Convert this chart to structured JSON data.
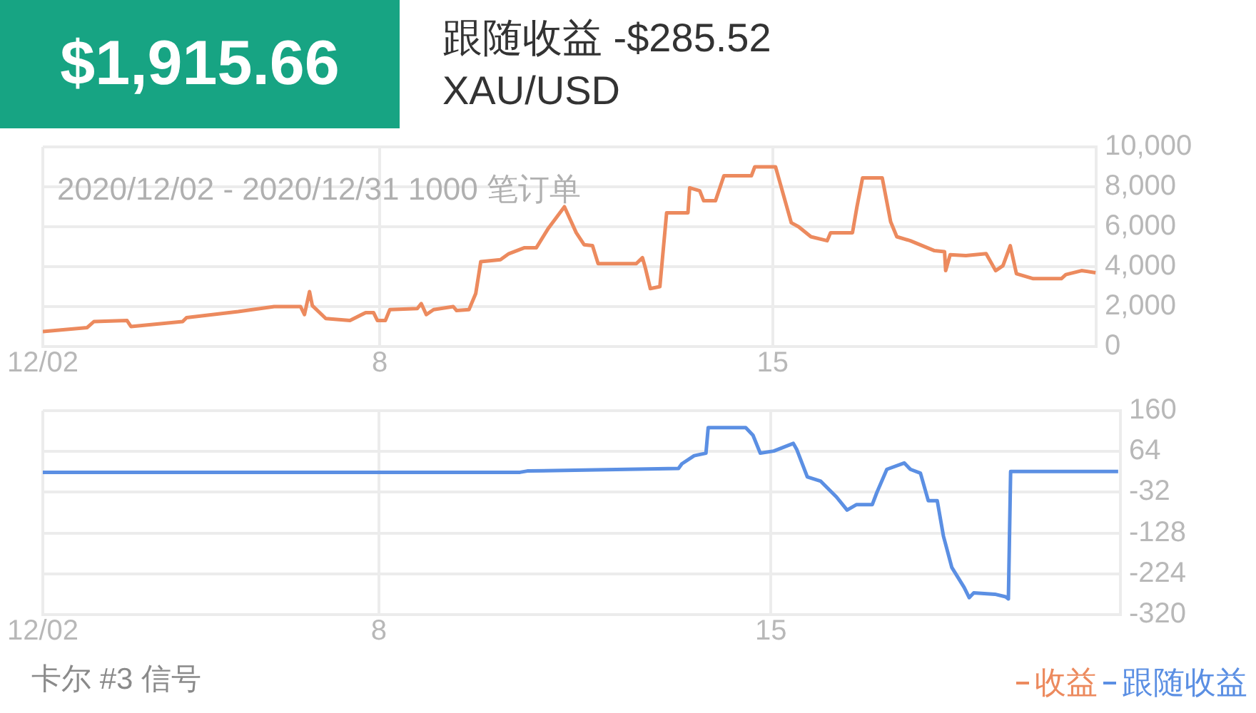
{
  "chart_data": [
    {
      "type": "line",
      "title": "$1,915.66",
      "subtitle": "跟随收益 -$285.52",
      "annotations": [
        "XAU/USD",
        "2020/12/02 - 2020/12/31 1000 笔订单"
      ],
      "xlim": [
        2,
        20.76
      ],
      "xticks": [
        {
          "value": 2,
          "label": "12/02"
        },
        {
          "value": 8,
          "label": "8"
        },
        {
          "value": 15,
          "label": "15"
        }
      ],
      "ylim": [
        0,
        10000
      ],
      "yticks": [
        0,
        {
          "value": 2000,
          "label": "2,000"
        },
        {
          "value": 4000,
          "label": "4,000"
        },
        {
          "value": 6000,
          "label": "6,000"
        },
        {
          "value": 8000,
          "label": "8,000"
        },
        {
          "value": 10000,
          "label": "10,000"
        }
      ],
      "grid": true,
      "legend": "bottom right",
      "marker": "none",
      "series": [
        {
          "name": "收益",
          "color": "#ec8a5e",
          "x": [
            2,
            2.79,
            2.91,
            3.5,
            3.57,
            4.49,
            4.56,
            5.48,
            6.12,
            6.59,
            6.66,
            6.75,
            6.8,
            7.04,
            7.47,
            7.75,
            7.89,
            7.96,
            8.1,
            8.18,
            8.67,
            8.74,
            8.83,
            8.96,
            9.31,
            9.37,
            9.59,
            9.71,
            9.8,
            10.15,
            10.3,
            10.58,
            10.79,
            11.01,
            11.29,
            11.5,
            11.64,
            11.79,
            11.89,
            12.57,
            12.68,
            12.73,
            12.82,
            12.99,
            13.11,
            13.49,
            13.52,
            13.7,
            13.77,
            13.98,
            14.13,
            14.62,
            14.68,
            15.05,
            15.19,
            15.33,
            15.46,
            15.68,
            15.97,
            16.03,
            16.42,
            16.5,
            16.6,
            16.95,
            17.1,
            17.21,
            17.45,
            17.88,
            18.06,
            18.08,
            18.16,
            18.44,
            18.8,
            18.97,
            19.1,
            19.23,
            19.34,
            19.64,
            20.14,
            20.22,
            20.5,
            20.75
          ],
          "values": [
            750,
            950,
            1250,
            1300,
            1000,
            1250,
            1450,
            1750,
            2000,
            2000,
            1600,
            2750,
            2050,
            1400,
            1300,
            1700,
            1700,
            1300,
            1300,
            1850,
            1900,
            2150,
            1600,
            1850,
            2000,
            1800,
            1850,
            2650,
            4250,
            4350,
            4650,
            4950,
            4950,
            5950,
            7000,
            5700,
            5100,
            5050,
            4150,
            4150,
            4450,
            3950,
            2900,
            3000,
            6700,
            6700,
            7950,
            7800,
            7300,
            7300,
            8550,
            8550,
            9000,
            9000,
            7600,
            6200,
            6000,
            5500,
            5300,
            5700,
            5700,
            7000,
            8450,
            8450,
            6250,
            5500,
            5300,
            4800,
            4750,
            3800,
            4600,
            4550,
            4650,
            3800,
            4050,
            5050,
            3650,
            3400,
            3400,
            3600,
            3800,
            3700
          ]
        }
      ]
    },
    {
      "type": "line",
      "annotations": [
        "卡尔 #3 信号"
      ],
      "xlim": [
        2,
        21.24
      ],
      "xticks": [
        {
          "value": 2,
          "label": "12/02"
        },
        {
          "value": 8,
          "label": "8"
        },
        {
          "value": 15,
          "label": "15"
        }
      ],
      "ylim": [
        -320,
        160
      ],
      "yticks": [
        160,
        64,
        -32,
        -128,
        -224,
        -320
      ],
      "grid": true,
      "legend": "bottom right",
      "marker": "none",
      "series": [
        {
          "name": "跟随收益",
          "color": "#5b8fe3",
          "x": [
            2,
            10.52,
            10.65,
            13.35,
            13.41,
            13.63,
            13.84,
            13.88,
            14.55,
            14.68,
            14.81,
            15.05,
            15.4,
            15.46,
            15.65,
            15.89,
            16.17,
            16.36,
            16.53,
            16.81,
            16.89,
            17.07,
            17.38,
            17.49,
            17.67,
            17.81,
            17.97,
            18.08,
            18.23,
            18.45,
            18.54,
            18.62,
            19,
            19.19,
            19.24,
            19.28,
            21.2
          ],
          "values": [
            15,
            15,
            18,
            24,
            35,
            54,
            60,
            120,
            120,
            102,
            60,
            65,
            83,
            69,
            4,
            -6,
            -43,
            -74,
            -61,
            -61,
            -33,
            22,
            37,
            22,
            13,
            -52,
            -52,
            -135,
            -209,
            -256,
            -280,
            -269,
            -272,
            -278,
            -283,
            17,
            17
          ]
        }
      ]
    }
  ]
}
